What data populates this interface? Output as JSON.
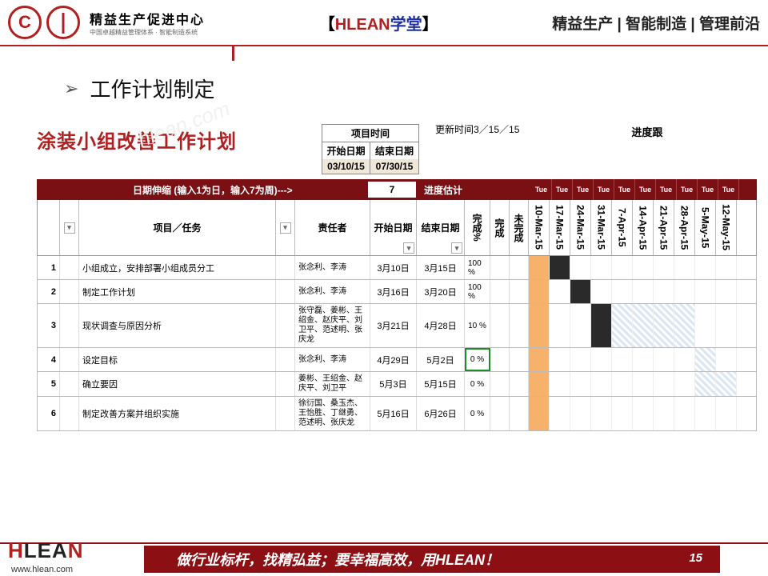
{
  "header": {
    "logo_letter": "C",
    "brand_cn": "精益生产促进中心",
    "brand_sub": "中国卓越精益管理体系 · 智能制造系统",
    "mid_bracket_l": "【",
    "mid_red": "HLEAN",
    "mid_blue": "学堂",
    "mid_bracket_r": "】",
    "right": "精益生产 | 智能制造 | 管理前沿"
  },
  "title": "工作计划制定",
  "watermark": "hlean.com",
  "plan": {
    "title": "涂装小组改善工作计划",
    "proj_time_label": "项目时间",
    "start_label": "开始日期",
    "end_label": "结束日期",
    "start_date": "03/10/15",
    "end_date": "07/30/15",
    "update_label": "更新时间3／15／15",
    "right_track_label": "进度跟"
  },
  "darkband": {
    "label": "日期伸缩 (输入1为日，输入7为周)--->",
    "value": "7",
    "progress_label": "进度估计",
    "day": "Tue"
  },
  "columns": {
    "task": "项目／任务",
    "owner": "责任者",
    "start": "开始日期",
    "end": "结束日期",
    "done_pct": "完成%",
    "done": "完成",
    "not_done": "未完成",
    "dates": [
      "10-Mar-15",
      "17-Mar-15",
      "24-Mar-15",
      "31-Mar-15",
      "7-Apr-15",
      "14-Apr-15",
      "21-Apr-15",
      "28-Apr-15",
      "5-May-15",
      "12-May-15"
    ]
  },
  "rows": [
    {
      "n": "1",
      "task": "小组成立，安排部署小组成员分工",
      "owner": "张念利、李涛",
      "start": "3月10日",
      "end": "3月15日",
      "pct": "100 %",
      "bars": [
        "o",
        "k",
        "",
        "",
        "",
        "",
        "",
        "",
        "",
        ""
      ]
    },
    {
      "n": "2",
      "task": "制定工作计划",
      "owner": "张念利、李涛",
      "start": "3月16日",
      "end": "3月20日",
      "pct": "100 %",
      "bars": [
        "o",
        "",
        "k",
        "",
        "",
        "",
        "",
        "",
        "",
        ""
      ]
    },
    {
      "n": "3",
      "task": "现状调查与原因分析",
      "owner": "张守磊、姜彬、王绍金、赵庆平、刘卫平、范述明、张庆龙",
      "start": "3月21日",
      "end": "4月28日",
      "pct": "10 %",
      "bars": [
        "o",
        "",
        "",
        "k",
        "h",
        "h",
        "h",
        "h",
        "",
        ""
      ]
    },
    {
      "n": "4",
      "task": "设定目标",
      "owner": "张念利、李涛",
      "start": "4月29日",
      "end": "5月2日",
      "pct": "0 %",
      "bars": [
        "o",
        "",
        "",
        "",
        "",
        "",
        "",
        "",
        "h",
        ""
      ],
      "green": true
    },
    {
      "n": "5",
      "task": "确立要因",
      "owner": "姜彬、王绍金、赵庆平、刘卫平",
      "start": "5月3日",
      "end": "5月15日",
      "pct": "0 %",
      "bars": [
        "o",
        "",
        "",
        "",
        "",
        "",
        "",
        "",
        "h",
        "h"
      ]
    },
    {
      "n": "6",
      "task": "制定改善方案并组织实施",
      "owner": "徐衍国、桑玉杰、王怡胜、丁继勇、范述明、张庆龙",
      "start": "5月16日",
      "end": "6月26日",
      "pct": "0 %",
      "bars": [
        "o",
        "",
        "",
        "",
        "",
        "",
        "",
        "",
        "",
        ""
      ]
    }
  ],
  "footer": {
    "brand": "HLEAN",
    "url": "www.hlean.com",
    "slogan": "做行业标杆，找精弘益；要幸福高效，用HLEAN！",
    "page": "15"
  }
}
